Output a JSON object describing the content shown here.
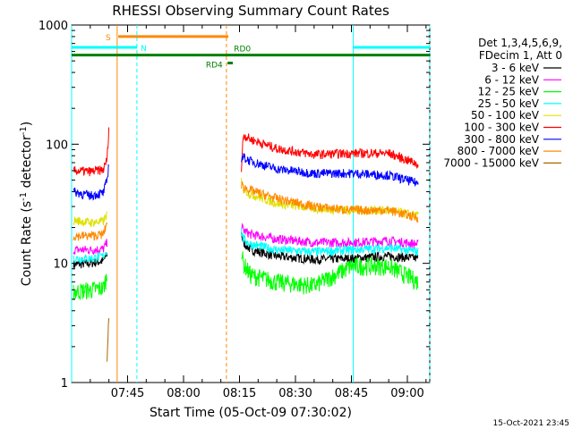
{
  "chart_data": {
    "type": "line",
    "title": "RHESSI Observing Summary Count Rates",
    "xlabel": "Start Time (05-Oct-09 07:30:02)",
    "ylabel": "Count Rate (s⁻¹ detector⁻¹)",
    "ylabel_base": "Count Rate (s",
    "ylabel_sup1": "-1",
    "ylabel_mid": " detector",
    "ylabel_sup2": "-1",
    "ylabel_end": ")",
    "yscale": "log",
    "ylim": [
      1,
      1000
    ],
    "xlim_minutes": [
      0,
      96
    ],
    "x_ticks": [
      {
        "label": "07:45",
        "minutes": 15
      },
      {
        "label": "08:00",
        "minutes": 30
      },
      {
        "label": "08:15",
        "minutes": 45
      },
      {
        "label": "08:30",
        "minutes": 60
      },
      {
        "label": "08:45",
        "minutes": 75
      },
      {
        "label": "09:00",
        "minutes": 90
      }
    ],
    "y_ticks": [
      {
        "label": "1",
        "value": 1
      },
      {
        "label": "10",
        "value": 10
      },
      {
        "label": "100",
        "value": 100
      },
      {
        "label": "1000",
        "value": 1000
      }
    ],
    "legend": {
      "placement": "right",
      "header": [
        "Det 1,3,4,5,6,9,",
        "FDecim 1, Att 0"
      ]
    },
    "intervals": [
      {
        "start": 0,
        "end": 11.5,
        "level": 0.95,
        "label": ""
      },
      {
        "start": 45,
        "end": 76,
        "level": 0.95,
        "label": ""
      }
    ],
    "series": [
      {
        "name": "3 - 6 keV",
        "color": "#000000",
        "pre": [
          [
            0.5,
            9.8
          ],
          [
            5,
            10
          ],
          [
            8.5,
            10.5
          ],
          [
            9.5,
            12
          ]
        ],
        "post": [
          [
            45.5,
            18
          ],
          [
            46,
            15
          ],
          [
            48,
            13
          ],
          [
            55,
            11.5
          ],
          [
            65,
            10.8
          ],
          [
            75,
            11
          ],
          [
            85,
            11.5
          ],
          [
            93,
            11
          ]
        ]
      },
      {
        "name": "6 - 12 keV",
        "color": "#ff00ff",
        "pre": [
          [
            0.5,
            13
          ],
          [
            5,
            13
          ],
          [
            8.5,
            13.2
          ],
          [
            9.5,
            15
          ]
        ],
        "post": [
          [
            45.5,
            21
          ],
          [
            46,
            19
          ],
          [
            48,
            17.5
          ],
          [
            55,
            16
          ],
          [
            65,
            15
          ],
          [
            75,
            15
          ],
          [
            85,
            15.5
          ],
          [
            93,
            14.5
          ]
        ]
      },
      {
        "name": "12 - 25 keV",
        "color": "#00ff00",
        "pre": [
          [
            0.5,
            5.8
          ],
          [
            5,
            6
          ],
          [
            8.5,
            6.2
          ],
          [
            9.5,
            8
          ]
        ],
        "post": [
          [
            45.5,
            13
          ],
          [
            46,
            10
          ],
          [
            48,
            8
          ],
          [
            55,
            7
          ],
          [
            65,
            6.5
          ],
          [
            75,
            9.5
          ],
          [
            85,
            9.5
          ],
          [
            93,
            7
          ]
        ]
      },
      {
        "name": "25 - 50 keV",
        "color": "#00ffff",
        "pre": [
          [
            0.5,
            11
          ],
          [
            5,
            11
          ],
          [
            8.5,
            11.5
          ],
          [
            9.5,
            13
          ]
        ],
        "post": [
          [
            45.5,
            19
          ],
          [
            46,
            16
          ],
          [
            48,
            14.5
          ],
          [
            55,
            13
          ],
          [
            65,
            12.5
          ],
          [
            75,
            13
          ],
          [
            85,
            13.5
          ],
          [
            93,
            12.5
          ]
        ]
      },
      {
        "name": "50 - 100 keV",
        "color": "#e0e000",
        "pre": [
          [
            0.5,
            23
          ],
          [
            5,
            22
          ],
          [
            8.5,
            22.5
          ],
          [
            9.5,
            26
          ]
        ],
        "post": [
          [
            45.5,
            48
          ],
          [
            46,
            42
          ],
          [
            48,
            38
          ],
          [
            55,
            32
          ],
          [
            65,
            29
          ],
          [
            75,
            28
          ],
          [
            85,
            28
          ],
          [
            93,
            25
          ]
        ]
      },
      {
        "name": "100 - 300 keV",
        "color": "#ff0000",
        "pre": [
          [
            0.5,
            60
          ],
          [
            5,
            59
          ],
          [
            8.5,
            61
          ],
          [
            9.5,
            75
          ],
          [
            10,
            140
          ]
        ],
        "post": [
          [
            45.5,
            60
          ],
          [
            46,
            120
          ],
          [
            48,
            110
          ],
          [
            55,
            92
          ],
          [
            65,
            82
          ],
          [
            75,
            84
          ],
          [
            85,
            84
          ],
          [
            93,
            68
          ]
        ]
      },
      {
        "name": "300 - 800 keV",
        "color": "#0000ff",
        "pre": [
          [
            0.5,
            40
          ],
          [
            5,
            37
          ],
          [
            8.5,
            39
          ],
          [
            9.5,
            50
          ],
          [
            10,
            70
          ]
        ],
        "post": [
          [
            45.5,
            75
          ],
          [
            46,
            78
          ],
          [
            48,
            72
          ],
          [
            55,
            62
          ],
          [
            65,
            57
          ],
          [
            75,
            57
          ],
          [
            85,
            55
          ],
          [
            93,
            47
          ]
        ]
      },
      {
        "name": "800 - 7000 keV",
        "color": "#ff8800",
        "pre": [
          [
            0.5,
            17
          ],
          [
            5,
            17
          ],
          [
            8.5,
            17.5
          ],
          [
            9.5,
            22
          ]
        ],
        "post": [
          [
            45.5,
            46
          ],
          [
            46,
            44
          ],
          [
            48,
            41
          ],
          [
            55,
            35
          ],
          [
            65,
            30
          ],
          [
            75,
            28
          ],
          [
            85,
            28
          ],
          [
            93,
            24
          ]
        ]
      },
      {
        "name": "7000 - 15000 keV",
        "color": "#aa6600",
        "pre": [
          [
            9.5,
            1.5
          ],
          [
            10,
            3.8
          ]
        ],
        "post": []
      }
    ],
    "annotations": [
      {
        "text": "S",
        "minutes": 10.5,
        "kind": "state",
        "color": "#ff8800",
        "bar_end": 42,
        "level": 800
      },
      {
        "text": "N",
        "minutes": 18.5,
        "kind": "state",
        "color": "#00ffff",
        "bar_start": 0,
        "bar_end": 17.5,
        "level": 650
      },
      {
        "text": "RD0",
        "minutes": 43.5,
        "kind": "state",
        "color": "#008000",
        "bar_start": 0,
        "bar_end": 96,
        "level": 560
      },
      {
        "text": "RD4",
        "minutes": 40.5,
        "kind": "state",
        "color": "#008000",
        "bar_start": 41.8,
        "bar_end": 43.2,
        "level": 480
      },
      {
        "text": "",
        "minutes": 75.5,
        "kind": "state",
        "color": "#00ffff",
        "bar_start": 75.5,
        "bar_end": 96,
        "level": 650
      }
    ],
    "vertical_lines": [
      {
        "minutes": 12.2,
        "color": "#ff8800",
        "style": "solid"
      },
      {
        "minutes": 17.5,
        "color": "#00ffff",
        "style": "dashed"
      },
      {
        "minutes": 41.5,
        "color": "#ff8800",
        "style": "dashed"
      },
      {
        "minutes": 75.5,
        "color": "#00ffff",
        "style": "solid"
      },
      {
        "minutes": 96,
        "color": "#00ffff",
        "style": "dashed"
      },
      {
        "minutes": 0,
        "color": "#00ffff",
        "style": "solid"
      }
    ],
    "footer_timestamp": "15-Oct-2021 23:45"
  }
}
